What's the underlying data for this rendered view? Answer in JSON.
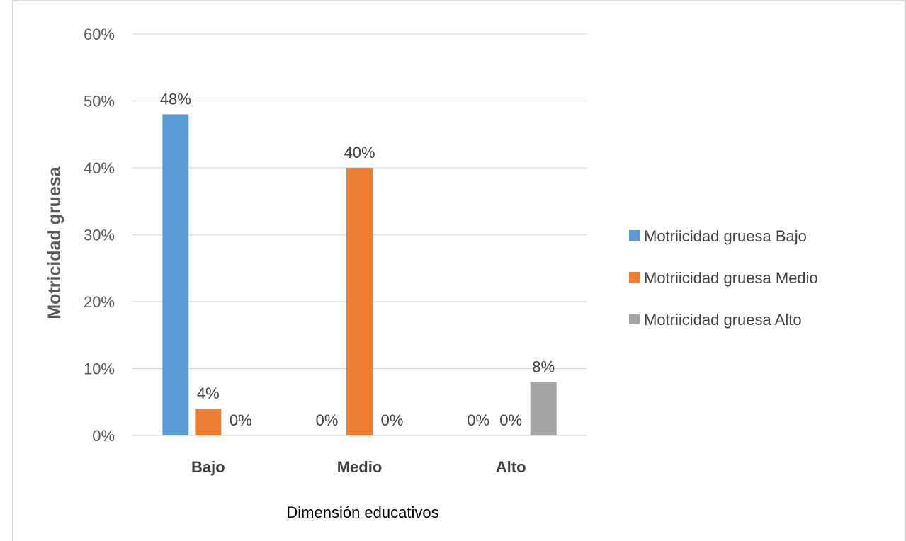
{
  "chart_data": {
    "type": "bar",
    "title": "",
    "xlabel": "Dimensión educativos",
    "ylabel": "Motricidad gruesa",
    "categories": [
      "Bajo",
      "Medio",
      "Alto"
    ],
    "ylim": [
      0,
      60
    ],
    "y_ticks": [
      "0%",
      "10%",
      "20%",
      "30%",
      "40%",
      "50%",
      "60%"
    ],
    "grid": true,
    "legend_position": "right",
    "series": [
      {
        "name": "Motriicidad gruesa Bajo",
        "color": "#5b9bd5",
        "values": [
          48,
          0,
          0
        ],
        "labels": [
          "48%",
          "0%",
          "0%"
        ]
      },
      {
        "name": "Motriicidad gruesa Medio",
        "color": "#ed7d31",
        "values": [
          4,
          40,
          0
        ],
        "labels": [
          "4%",
          "40%",
          "0%"
        ]
      },
      {
        "name": "Motriicidad gruesa Alto",
        "color": "#a5a5a5",
        "values": [
          0,
          0,
          8
        ],
        "labels": [
          "0%",
          "0%",
          "8%"
        ]
      }
    ]
  }
}
